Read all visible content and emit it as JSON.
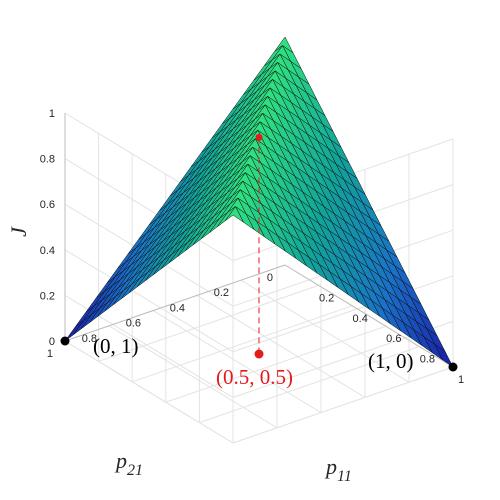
{
  "chart_data": {
    "type": "surface",
    "title": "",
    "xlabel": "p_11",
    "ylabel": "p_21",
    "zlabel": "J",
    "xlim": [
      0,
      1
    ],
    "ylim": [
      0,
      1
    ],
    "zlim": [
      0,
      1
    ],
    "x_ticks": [
      "0.2",
      "0.4",
      "0.6",
      "0.8",
      "1"
    ],
    "y_ticks": [
      "0",
      "0.2",
      "0.4",
      "0.6",
      "0.8",
      "1"
    ],
    "z_ticks": [
      "0",
      "0.2",
      "0.4",
      "0.6",
      "0.8",
      "1"
    ],
    "grid": true,
    "grid_resolution": 21,
    "surface_formula": "J = 1 - |p11 - p21|",
    "colormap": [
      "#1a1aa8",
      "#1a72c8",
      "#11a59a",
      "#2fe080"
    ],
    "points": [
      {
        "p11": 0,
        "p21": 1,
        "J": 0,
        "color": "#000000"
      },
      {
        "p11": 1,
        "p21": 0,
        "J": 0,
        "color": "#000000"
      },
      {
        "p11": 0.5,
        "p21": 0.5,
        "J": 1,
        "color": "#e41b1b"
      }
    ],
    "annotations": [
      {
        "text": "(0, 1)",
        "color": "#000000"
      },
      {
        "text": "(1, 0)",
        "color": "#000000"
      },
      {
        "text": "(0.5, 0.5)",
        "color": "#e41b1b"
      }
    ],
    "x_label": {
      "main": "p",
      "sub": "11"
    },
    "y_label": {
      "main": "p",
      "sub": "21"
    }
  }
}
